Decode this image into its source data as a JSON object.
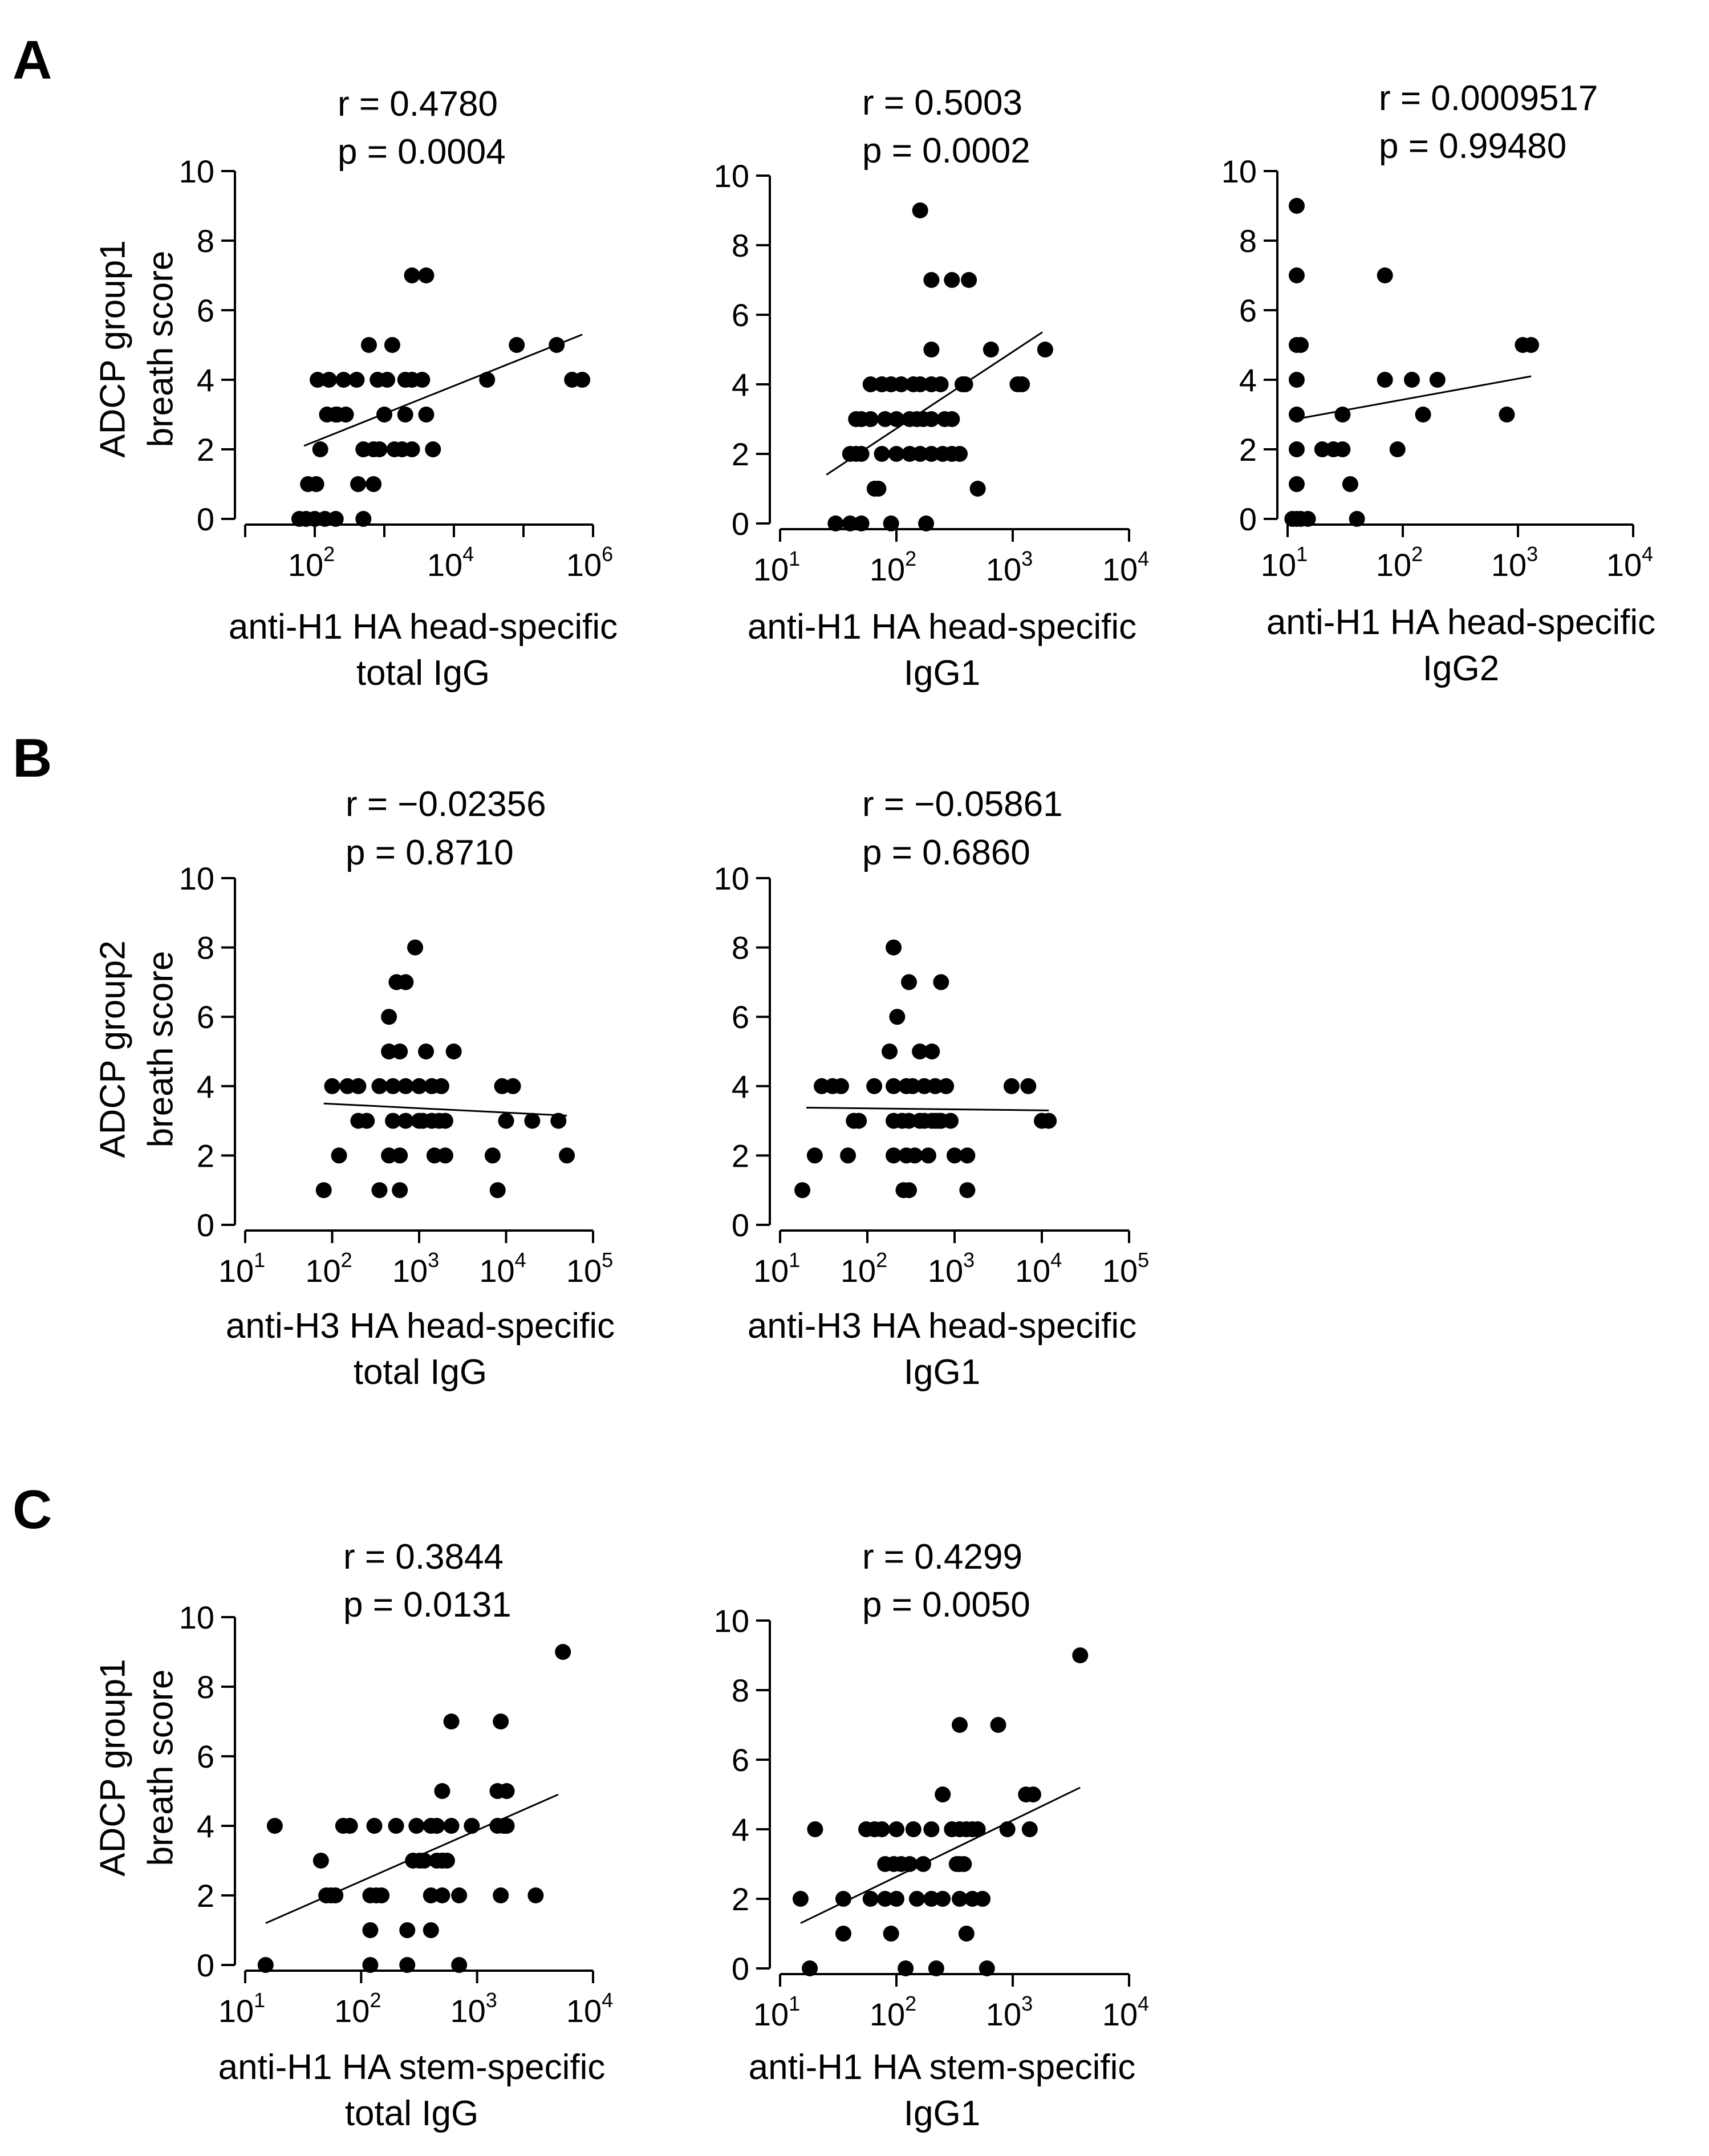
{
  "panels": {
    "a": "A",
    "b": "B",
    "c": "C"
  },
  "y_labels": {
    "a": [
      "ADCP group1",
      "breath score"
    ],
    "b": [
      "ADCP group2",
      "breath score"
    ],
    "c": [
      "ADCP group1",
      "breath score"
    ]
  },
  "chart_data": [
    {
      "id": "A1",
      "panel": "A",
      "type": "scatter",
      "stats": {
        "r": "r = 0.4780",
        "p": "p = 0.0004"
      },
      "xlabel": [
        "anti-H1 HA head-specific",
        "total IgG"
      ],
      "ylabel": "ADCP group1 breath score",
      "xscale": "log10",
      "xlim": [
        10,
        1000000
      ],
      "xticks": [
        {
          "base": "10",
          "exp": "2",
          "value": 100
        },
        {
          "base": "10",
          "exp": "4",
          "value": 10000
        },
        {
          "base": "10",
          "exp": "6",
          "value": 1000000
        }
      ],
      "ylim": [
        0,
        10
      ],
      "yticks": [
        0,
        2,
        4,
        6,
        8,
        10
      ],
      "fit": {
        "x": [
          70,
          700000
        ],
        "y": [
          2.1,
          5.3
        ]
      },
      "x": [
        60,
        75,
        100,
        140,
        200,
        500,
        420,
        700,
        80,
        105,
        120,
        200,
        280,
        150,
        210,
        500,
        700,
        850,
        1400,
        1800,
        2500,
        5000,
        110,
        160,
        260,
        400,
        800,
        1100,
        2000,
        2500,
        3500,
        600,
        1300,
        2500,
        4000,
        1000,
        2000,
        4000,
        30000,
        80000,
        300000,
        500000,
        700000
      ],
      "y": [
        0,
        0,
        0,
        0,
        0,
        0,
        1,
        1,
        1,
        1,
        2,
        3,
        3,
        3,
        3,
        2,
        2,
        2,
        2,
        2,
        2,
        2,
        4,
        4,
        4,
        4,
        4,
        4,
        4,
        4,
        4,
        5,
        5,
        7,
        7,
        3,
        3,
        3,
        4,
        5,
        5,
        4,
        4
      ]
    },
    {
      "id": "A2",
      "panel": "A",
      "type": "scatter",
      "stats": {
        "r": "r = 0.5003",
        "p": "p = 0.0002"
      },
      "xlabel": [
        "anti-H1 HA head-specific",
        "IgG1"
      ],
      "ylabel": "ADCP group1 breath score",
      "xscale": "log10",
      "xlim": [
        10,
        10000
      ],
      "xticks": [
        {
          "base": "10",
          "exp": "1",
          "value": 10
        },
        {
          "base": "10",
          "exp": "2",
          "value": 100
        },
        {
          "base": "10",
          "exp": "3",
          "value": 1000
        },
        {
          "base": "10",
          "exp": "4",
          "value": 10000
        }
      ],
      "ylim": [
        0,
        10
      ],
      "yticks": [
        0,
        2,
        4,
        6,
        8,
        10
      ],
      "fit": {
        "x": [
          25,
          1800
        ],
        "y": [
          1.4,
          5.5
        ]
      },
      "x": [
        30,
        40,
        50,
        90,
        180,
        45,
        65,
        70,
        500,
        40,
        50,
        75,
        100,
        130,
        160,
        200,
        250,
        300,
        350,
        45,
        60,
        80,
        100,
        130,
        150,
        170,
        200,
        260,
        300,
        50,
        60,
        75,
        90,
        110,
        140,
        160,
        200,
        240,
        370,
        390,
        1100,
        1200,
        200,
        650,
        1900,
        200,
        300,
        420,
        160
      ],
      "y": [
        0,
        0,
        0,
        0,
        0,
        2,
        1,
        1,
        1,
        2,
        2,
        2,
        2,
        2,
        2,
        2,
        2,
        2,
        2,
        3,
        3,
        3,
        3,
        3,
        3,
        3,
        3,
        3,
        3,
        3,
        4,
        4,
        4,
        4,
        4,
        4,
        4,
        4,
        4,
        4,
        4,
        4,
        5,
        5,
        5,
        7,
        7,
        7,
        9
      ]
    },
    {
      "id": "A3",
      "panel": "A",
      "type": "scatter",
      "stats": {
        "r": "r = 0.0009517",
        "p": "p = 0.99480"
      },
      "xlabel": [
        "anti-H1 HA head-specific",
        "IgG2"
      ],
      "ylabel": "ADCP group1 breath score",
      "xscale": "log10",
      "xlim": [
        10,
        10000
      ],
      "xticks": [
        {
          "base": "10",
          "exp": "1",
          "value": 10
        },
        {
          "base": "10",
          "exp": "2",
          "value": 100
        },
        {
          "base": "10",
          "exp": "3",
          "value": 1000
        },
        {
          "base": "10",
          "exp": "4",
          "value": 10000
        }
      ],
      "ylim": [
        0,
        10
      ],
      "yticks": [
        0,
        2,
        4,
        6,
        8,
        10
      ],
      "fit": {
        "x": [
          11,
          1300
        ],
        "y": [
          2.85,
          4.1
        ]
      },
      "x": [
        11,
        12,
        13,
        15,
        40,
        12,
        35,
        12,
        20,
        25,
        30,
        90,
        12,
        30,
        150,
        800,
        12,
        70,
        120,
        200,
        12,
        13,
        1100,
        1300,
        12,
        70,
        12
      ],
      "y": [
        0,
        0,
        0,
        0,
        0,
        1,
        1,
        2,
        2,
        2,
        2,
        2,
        3,
        3,
        3,
        3,
        4,
        4,
        4,
        4,
        5,
        5,
        5,
        5,
        7,
        7,
        9
      ]
    },
    {
      "id": "B1",
      "panel": "B",
      "type": "scatter",
      "stats": {
        "r": "r = −0.02356",
        "p": "p = 0.8710"
      },
      "xlabel": [
        "anti-H3 HA head-specific",
        "total IgG"
      ],
      "ylabel": "ADCP group2 breath score",
      "xscale": "log10",
      "xlim": [
        10,
        100000
      ],
      "xticks": [
        {
          "base": "10",
          "exp": "1",
          "value": 10
        },
        {
          "base": "10",
          "exp": "2",
          "value": 100
        },
        {
          "base": "10",
          "exp": "3",
          "value": 1000
        },
        {
          "base": "10",
          "exp": "4",
          "value": 10000
        },
        {
          "base": "10",
          "exp": "5",
          "value": 100000
        }
      ],
      "ylim": [
        0,
        10
      ],
      "yticks": [
        0,
        2,
        4,
        6,
        8,
        10
      ],
      "fit": {
        "x": [
          80,
          50000
        ],
        "y": [
          3.5,
          3.15
        ]
      },
      "x": [
        80,
        350,
        600,
        8000,
        120,
        450,
        600,
        1500,
        2000,
        7000,
        50000,
        200,
        250,
        500,
        700,
        1000,
        1100,
        1400,
        1700,
        2000,
        10000,
        20000,
        40000,
        100,
        150,
        200,
        350,
        500,
        700,
        1000,
        1400,
        1800,
        9000,
        12000,
        450,
        1200,
        2500,
        450,
        550,
        700,
        900,
        600
      ],
      "y": [
        1,
        1,
        1,
        1,
        2,
        2,
        2,
        2,
        2,
        2,
        2,
        3,
        3,
        3,
        3,
        3,
        3,
        3,
        3,
        3,
        3,
        3,
        3,
        4,
        4,
        4,
        4,
        4,
        4,
        4,
        4,
        4,
        4,
        4,
        5,
        5,
        5,
        6,
        7,
        7,
        8,
        5
      ]
    },
    {
      "id": "B2",
      "panel": "B",
      "type": "scatter",
      "stats": {
        "r": "r = −0.05861",
        "p": "p = 0.6860"
      },
      "xlabel": [
        "anti-H3 HA head-specific",
        "IgG1"
      ],
      "ylabel": "ADCP group2 breath score",
      "xscale": "log10",
      "xlim": [
        10,
        100000
      ],
      "xticks": [
        {
          "base": "10",
          "exp": "1",
          "value": 10
        },
        {
          "base": "10",
          "exp": "2",
          "value": 100
        },
        {
          "base": "10",
          "exp": "3",
          "value": 1000
        },
        {
          "base": "10",
          "exp": "4",
          "value": 10000
        },
        {
          "base": "10",
          "exp": "5",
          "value": 100000
        }
      ],
      "ylim": [
        0,
        10
      ],
      "yticks": [
        0,
        2,
        4,
        6,
        8,
        10
      ],
      "fit": {
        "x": [
          20,
          12000
        ],
        "y": [
          3.38,
          3.3
        ]
      },
      "x": [
        18,
        260,
        300,
        1400,
        25,
        60,
        200,
        280,
        350,
        500,
        1000,
        1400,
        70,
        80,
        200,
        250,
        300,
        400,
        450,
        550,
        600,
        650,
        700,
        900,
        10000,
        12000,
        30,
        40,
        50,
        120,
        200,
        280,
        330,
        450,
        600,
        800,
        4500,
        7000,
        180,
        400,
        550,
        220,
        300,
        700,
        200
      ],
      "y": [
        1,
        1,
        1,
        1,
        2,
        2,
        2,
        2,
        2,
        2,
        2,
        2,
        3,
        3,
        3,
        3,
        3,
        3,
        3,
        3,
        3,
        3,
        3,
        3,
        3,
        3,
        4,
        4,
        4,
        4,
        4,
        4,
        4,
        4,
        4,
        4,
        4,
        4,
        5,
        5,
        5,
        6,
        7,
        7,
        8
      ]
    },
    {
      "id": "C1",
      "panel": "C",
      "type": "scatter",
      "stats": {
        "r": "r = 0.3844",
        "p": "p = 0.0131"
      },
      "xlabel": [
        "anti-H1 HA stem-specific",
        "total IgG"
      ],
      "ylabel": "ADCP group1 breath score",
      "xscale": "log10",
      "xlim": [
        10,
        10000
      ],
      "xticks": [
        {
          "base": "10",
          "exp": "1",
          "value": 10
        },
        {
          "base": "10",
          "exp": "2",
          "value": 100
        },
        {
          "base": "10",
          "exp": "3",
          "value": 1000
        },
        {
          "base": "10",
          "exp": "4",
          "value": 10000
        }
      ],
      "ylim": [
        0,
        10
      ],
      "yticks": [
        0,
        2,
        4,
        6,
        8,
        10
      ],
      "fit": {
        "x": [
          15,
          5000
        ],
        "y": [
          1.2,
          4.9
        ]
      },
      "x": [
        15,
        120,
        250,
        700,
        120,
        250,
        400,
        50,
        55,
        60,
        120,
        135,
        150,
        400,
        500,
        700,
        1600,
        3200,
        45,
        280,
        320,
        350,
        450,
        500,
        550,
        18,
        70,
        80,
        130,
        200,
        300,
        400,
        450,
        600,
        900,
        1500,
        1700,
        1800,
        500,
        1500,
        1800,
        600,
        1600,
        5500
      ],
      "y": [
        0,
        0,
        0,
        0,
        1,
        1,
        1,
        2,
        2,
        2,
        2,
        2,
        2,
        2,
        2,
        2,
        2,
        2,
        3,
        3,
        3,
        3,
        3,
        3,
        3,
        4,
        4,
        4,
        4,
        4,
        4,
        4,
        4,
        4,
        4,
        4,
        4,
        4,
        5,
        5,
        5,
        7,
        7,
        9
      ]
    },
    {
      "id": "C2",
      "panel": "C",
      "type": "scatter",
      "stats": {
        "r": "r = 0.4299",
        "p": "p = 0.0050"
      },
      "xlabel": [
        "anti-H1 HA stem-specific",
        "IgG1"
      ],
      "ylabel": "ADCP group1 breath score",
      "xscale": "log10",
      "xlim": [
        10,
        10000
      ],
      "xticks": [
        {
          "base": "10",
          "exp": "1",
          "value": 10
        },
        {
          "base": "10",
          "exp": "2",
          "value": 100
        },
        {
          "base": "10",
          "exp": "3",
          "value": 1000
        },
        {
          "base": "10",
          "exp": "4",
          "value": 10000
        }
      ],
      "ylim": [
        0,
        10
      ],
      "yticks": [
        0,
        2,
        4,
        6,
        8,
        10
      ],
      "fit": {
        "x": [
          15,
          3800
        ],
        "y": [
          1.3,
          5.2
        ]
      },
      "x": [
        18,
        120,
        220,
        600,
        35,
        90,
        400,
        15,
        35,
        60,
        80,
        100,
        150,
        200,
        250,
        350,
        450,
        550,
        80,
        95,
        110,
        130,
        170,
        330,
        350,
        380,
        20,
        55,
        65,
        75,
        100,
        140,
        200,
        300,
        350,
        400,
        450,
        500,
        900,
        1400,
        250,
        1300,
        1500,
        350,
        750,
        3800
      ],
      "y": [
        0,
        0,
        0,
        0,
        1,
        1,
        1,
        2,
        2,
        2,
        2,
        2,
        2,
        2,
        2,
        2,
        2,
        2,
        3,
        3,
        3,
        3,
        3,
        3,
        3,
        3,
        4,
        4,
        4,
        4,
        4,
        4,
        4,
        4,
        4,
        4,
        4,
        4,
        4,
        4,
        5,
        5,
        5,
        7,
        7,
        9
      ]
    }
  ]
}
